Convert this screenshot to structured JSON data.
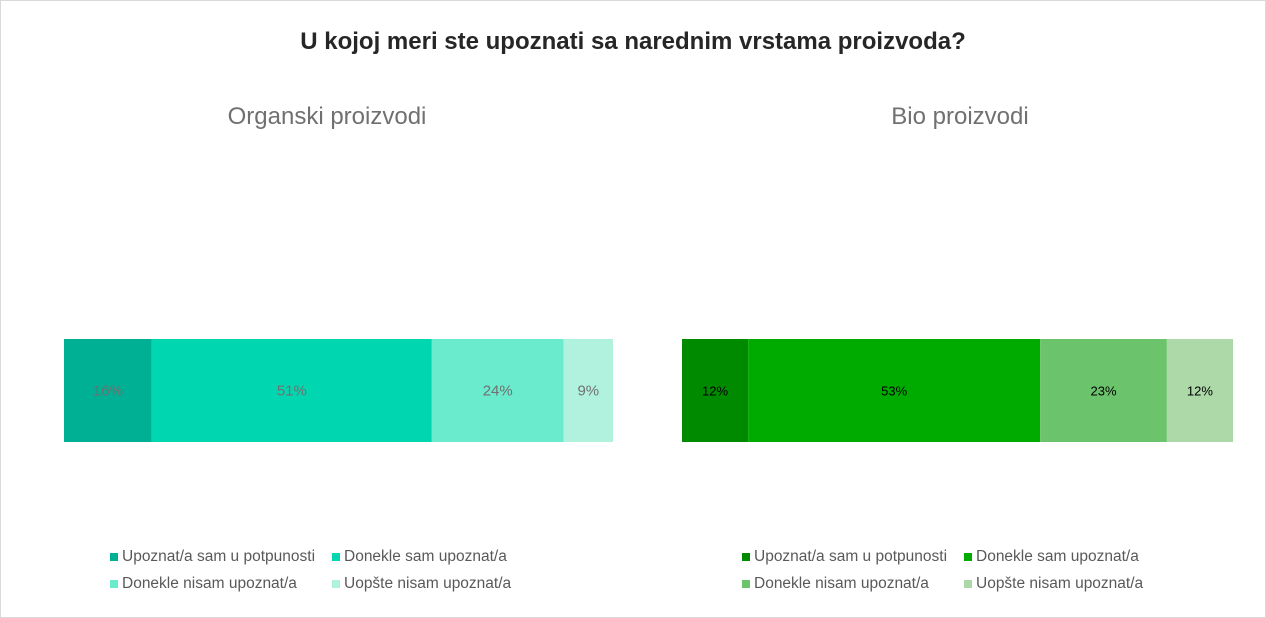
{
  "title": "U kojoj meri ste upoznati sa narednim vrstama proizvoda?",
  "chart_data": [
    {
      "type": "bar",
      "orientation": "horizontal-stacked-100",
      "title": "Organski proizvodi",
      "series": [
        {
          "name": "Upoznat/a sam u potpunosti",
          "value": 16,
          "label": "16%",
          "color": "#00b094"
        },
        {
          "name": "Donekle sam upoznat/a",
          "value": 51,
          "label": "51%",
          "color": "#00d7b0"
        },
        {
          "name": "Donekle nisam upoznat/a",
          "value": 24,
          "label": "24%",
          "color": "#6bebcd"
        },
        {
          "name": "Uopšte nisam upoznat/a",
          "value": 9,
          "label": "9%",
          "color": "#b1f2de"
        }
      ],
      "label_color": "#707070",
      "legend_position": "bottom"
    },
    {
      "type": "bar",
      "orientation": "horizontal-stacked-100",
      "title": "Bio proizvodi",
      "series": [
        {
          "name": "Upoznat/a sam u potpunosti",
          "value": 12,
          "label": "12%",
          "color": "#008a00"
        },
        {
          "name": "Donekle sam upoznat/a",
          "value": 53,
          "label": "53%",
          "color": "#00ab00"
        },
        {
          "name": "Donekle nisam upoznat/a",
          "value": 23,
          "label": "23%",
          "color": "#6bc36b"
        },
        {
          "name": "Uopšte nisam upoznat/a",
          "value": 12,
          "label": "12%",
          "color": "#add8a8"
        }
      ],
      "label_color": "#000000",
      "legend_position": "bottom"
    }
  ]
}
